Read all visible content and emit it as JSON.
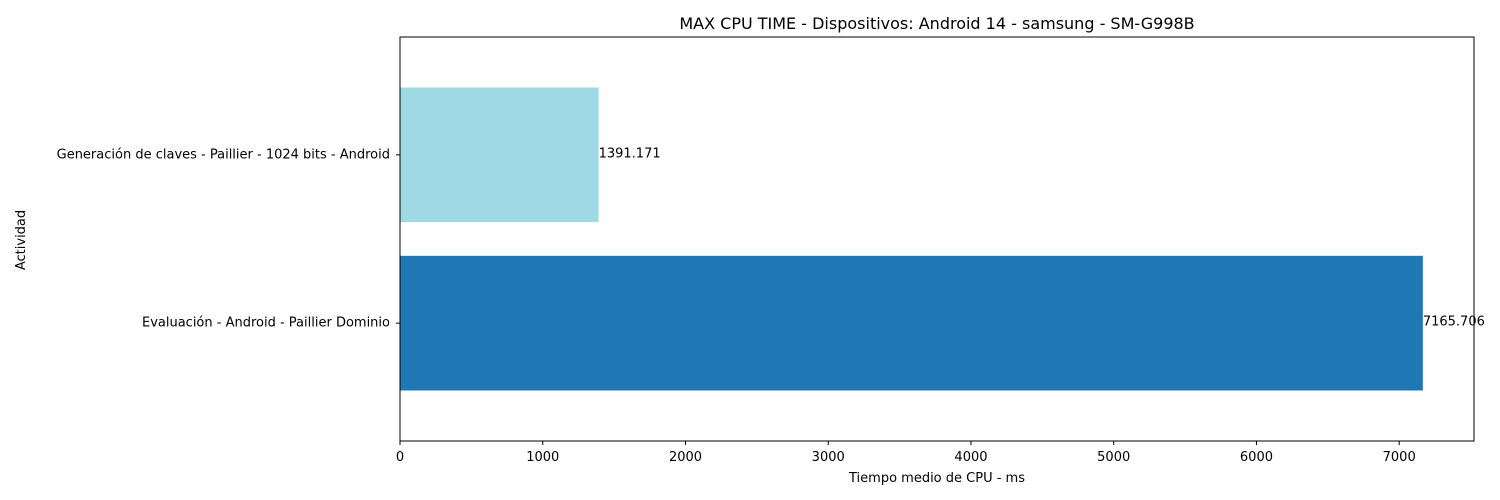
{
  "chart_data": {
    "type": "bar",
    "orientation": "horizontal",
    "title": "MAX CPU TIME - Dispositivos: Android 14 - samsung - SM-G998B",
    "xlabel": "Tiempo medio de CPU - ms",
    "ylabel": "Actividad",
    "categories": [
      "Generación de claves - Paillier - 1024 bits - Android",
      "Evaluación - Android - Paillier Dominio"
    ],
    "values": [
      1391.171,
      7165.706
    ],
    "value_labels": [
      "1391.171",
      "7165.706"
    ],
    "colors": [
      "#9fdae4",
      "#1f77b4"
    ],
    "xlim": [
      0,
      7524
    ],
    "xticks": [
      0,
      1000,
      2000,
      3000,
      4000,
      5000,
      6000,
      7000
    ],
    "xtick_labels": [
      "0",
      "1000",
      "2000",
      "3000",
      "4000",
      "5000",
      "6000",
      "7000"
    ],
    "grid": false,
    "legend": "none"
  }
}
